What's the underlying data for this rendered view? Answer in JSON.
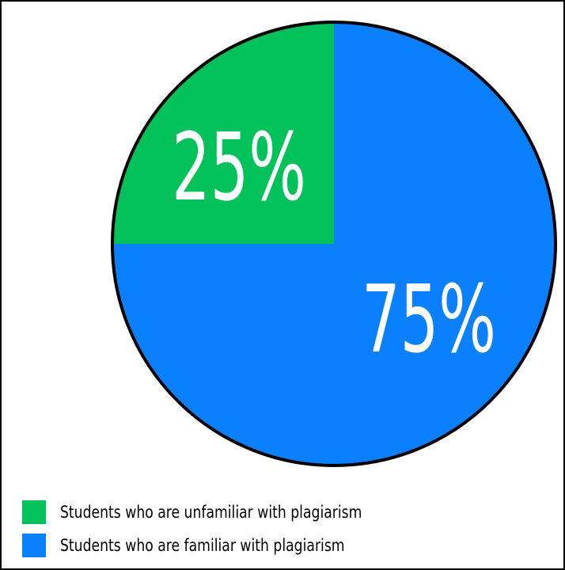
{
  "chart_data": {
    "type": "pie",
    "slices": [
      {
        "label": "Students who are unfamiliar with plagiarism",
        "value": 25,
        "display": "25%",
        "color": "#00c15a"
      },
      {
        "label": "Students who are familiar with plagiarism",
        "value": 75,
        "display": "75%",
        "color": "#0b80ff"
      }
    ],
    "legend": {
      "placement": "bottom-left",
      "items": [
        {
          "label": "Students who are unfamiliar with plagiarism",
          "color": "#00c15a"
        },
        {
          "label": "Students who are familiar with plagiarism",
          "color": "#0b80ff"
        }
      ]
    },
    "outline_color": "#000000"
  }
}
